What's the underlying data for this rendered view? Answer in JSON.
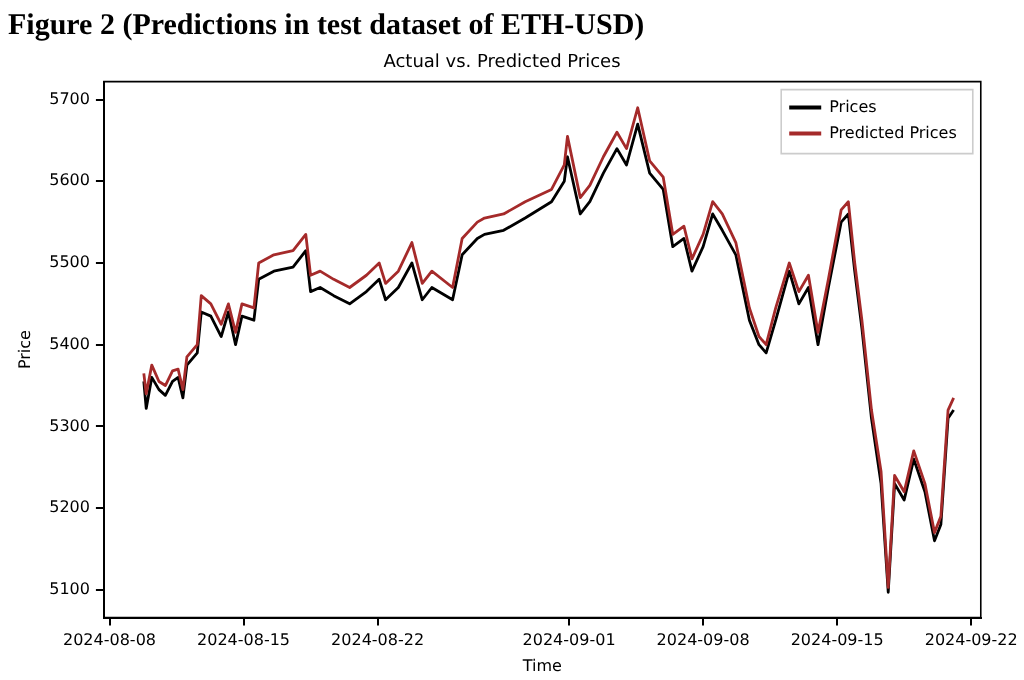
{
  "chart_data": {
    "type": "line",
    "title": "Figure 2 (Predictions in test dataset of ETH-USD)",
    "subtitle": "Actual vs. Predicted Prices",
    "xlabel": "Time",
    "ylabel": "Price",
    "x": [
      "2024-08-09T19:00",
      "2024-08-09T22:00",
      "2024-08-10T05:00",
      "2024-08-10T14:00",
      "2024-08-10T22:00",
      "2024-08-11T07:00",
      "2024-08-11T14:00",
      "2024-08-11T20:00",
      "2024-08-12T01:00",
      "2024-08-12T14:00",
      "2024-08-12T19:00",
      "2024-08-13T07:00",
      "2024-08-13T20:00",
      "2024-08-14T05:00",
      "2024-08-14T14:00",
      "2024-08-14T22:00",
      "2024-08-15T13:00",
      "2024-08-15T19:00",
      "2024-08-16T14:00",
      "2024-08-17T14:00",
      "2024-08-18T06:00",
      "2024-08-18T12:00",
      "2024-08-19T00:00",
      "2024-08-19T17:00",
      "2024-08-20T13:00",
      "2024-08-21T10:00",
      "2024-08-22T02:00",
      "2024-08-22T10:00",
      "2024-08-23T02:00",
      "2024-08-23T19:00",
      "2024-08-24T08:00",
      "2024-08-24T20:00",
      "2024-08-25T22:00",
      "2024-08-26T10:00",
      "2024-08-27T05:00",
      "2024-08-27T14:00",
      "2024-08-28T14:00",
      "2024-08-29T17:00",
      "2024-08-31T02:00",
      "2024-08-31T18:00",
      "2024-08-31T22:00",
      "2024-09-01T14:00",
      "2024-09-02T02:00",
      "2024-09-02T19:00",
      "2024-09-03T12:00",
      "2024-09-04T00:00",
      "2024-09-04T14:00",
      "2024-09-05T05:00",
      "2024-09-05T22:00",
      "2024-09-06T10:00",
      "2024-09-07T00:00",
      "2024-09-07T10:00",
      "2024-09-08T00:00",
      "2024-09-08T12:00",
      "2024-09-09T00:00",
      "2024-09-09T17:00",
      "2024-09-10T10:00",
      "2024-09-10T22:00",
      "2024-09-11T07:00",
      "2024-09-11T19:00",
      "2024-09-12T12:00",
      "2024-09-13T00:00",
      "2024-09-13T12:00",
      "2024-09-14T00:00",
      "2024-09-14T13:00",
      "2024-09-15T05:00",
      "2024-09-15T14:00",
      "2024-09-15T22:00",
      "2024-09-16T07:00",
      "2024-09-16T19:00",
      "2024-09-17T07:00",
      "2024-09-17T16:00",
      "2024-09-18T00:00",
      "2024-09-18T12:00",
      "2024-09-19T00:00",
      "2024-09-19T14:00",
      "2024-09-20T02:00",
      "2024-09-20T10:00",
      "2024-09-20T19:00",
      "2024-09-21T02:00"
    ],
    "series": [
      {
        "name": "Prices",
        "color": "#000000",
        "values": [
          5355,
          5322,
          5360,
          5345,
          5338,
          5355,
          5360,
          5335,
          5375,
          5390,
          5440,
          5435,
          5410,
          5440,
          5400,
          5435,
          5430,
          5480,
          5490,
          5495,
          5515,
          5465,
          5470,
          5460,
          5450,
          5465,
          5480,
          5455,
          5470,
          5500,
          5455,
          5470,
          5455,
          5510,
          5530,
          5535,
          5540,
          5555,
          5575,
          5600,
          5630,
          5560,
          5575,
          5610,
          5640,
          5620,
          5670,
          5610,
          5590,
          5520,
          5530,
          5490,
          5520,
          5560,
          5540,
          5510,
          5430,
          5400,
          5390,
          5430,
          5490,
          5450,
          5470,
          5400,
          5470,
          5550,
          5560,
          5490,
          5420,
          5310,
          5230,
          5097,
          5230,
          5210,
          5260,
          5220,
          5160,
          5180,
          5310,
          5320
        ]
      },
      {
        "name": "Predicted Prices",
        "color": "#a52a2a",
        "values": [
          5365,
          5340,
          5375,
          5355,
          5350,
          5368,
          5370,
          5345,
          5385,
          5400,
          5460,
          5450,
          5425,
          5450,
          5415,
          5450,
          5445,
          5500,
          5510,
          5515,
          5535,
          5485,
          5490,
          5480,
          5470,
          5485,
          5500,
          5475,
          5490,
          5525,
          5475,
          5490,
          5470,
          5530,
          5550,
          5555,
          5560,
          5575,
          5590,
          5620,
          5655,
          5580,
          5595,
          5630,
          5660,
          5640,
          5690,
          5625,
          5605,
          5535,
          5545,
          5505,
          5535,
          5575,
          5560,
          5525,
          5445,
          5410,
          5400,
          5445,
          5500,
          5465,
          5485,
          5415,
          5480,
          5565,
          5575,
          5500,
          5430,
          5320,
          5245,
          5103,
          5240,
          5220,
          5270,
          5230,
          5170,
          5190,
          5320,
          5335
        ]
      }
    ],
    "xlim": [
      "2024-08-07T17:00",
      "2024-09-22T12:00"
    ],
    "xticks": [
      "2024-08-08",
      "2024-08-15",
      "2024-08-22",
      "2024-09-01",
      "2024-09-08",
      "2024-09-15",
      "2024-09-22"
    ],
    "ylim": [
      5066,
      5722
    ],
    "yticks": [
      5100,
      5200,
      5300,
      5400,
      5500,
      5600,
      5700
    ],
    "grid": false,
    "legend": "top right",
    "marker": "none",
    "line_style": "solid"
  }
}
